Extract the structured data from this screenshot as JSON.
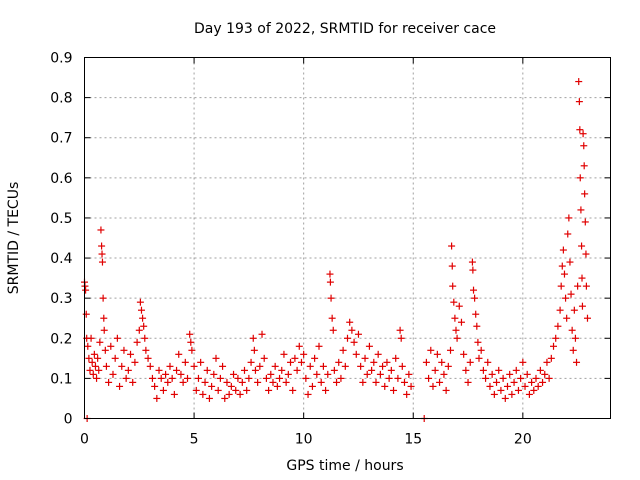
{
  "chart_data": {
    "type": "scatter",
    "title": "Day 193 of 2022, SRMTID for receiver cace",
    "xlabel": "GPS time / hours",
    "ylabel": "SRMTID / TECUs",
    "xlim": [
      0,
      24
    ],
    "ylim": [
      0,
      0.9
    ],
    "x_ticks": [
      0,
      5,
      10,
      15,
      20
    ],
    "x_tick_labels": [
      "0",
      "5",
      "10",
      "15",
      "20"
    ],
    "y_ticks": [
      0,
      0.1,
      0.2,
      0.3,
      0.4,
      0.5,
      0.6,
      0.7,
      0.8,
      0.9
    ],
    "y_tick_labels": [
      "0",
      "0.1",
      "0.2",
      "0.3",
      "0.4",
      "0.5",
      "0.6",
      "0.7",
      "0.8",
      "0.9"
    ],
    "grid": true,
    "marker": "+",
    "color": "#e00000",
    "series": [
      {
        "name": "SRMTID",
        "points": [
          [
            0.0,
            0.34
          ],
          [
            0.02,
            0.33
          ],
          [
            0.05,
            0.32
          ],
          [
            0.08,
            0.26
          ],
          [
            0.1,
            0.2
          ],
          [
            0.12,
            0.0
          ],
          [
            0.15,
            0.18
          ],
          [
            0.2,
            0.15
          ],
          [
            0.25,
            0.12
          ],
          [
            0.3,
            0.2
          ],
          [
            0.35,
            0.14
          ],
          [
            0.4,
            0.11
          ],
          [
            0.45,
            0.16
          ],
          [
            0.5,
            0.13
          ],
          [
            0.55,
            0.1
          ],
          [
            0.6,
            0.15
          ],
          [
            0.65,
            0.12
          ],
          [
            0.7,
            0.19
          ],
          [
            0.75,
            0.47
          ],
          [
            0.78,
            0.43
          ],
          [
            0.8,
            0.41
          ],
          [
            0.82,
            0.39
          ],
          [
            0.85,
            0.3
          ],
          [
            0.88,
            0.25
          ],
          [
            0.9,
            0.22
          ],
          [
            0.95,
            0.17
          ],
          [
            1.0,
            0.13
          ],
          [
            1.1,
            0.09
          ],
          [
            1.2,
            0.18
          ],
          [
            1.3,
            0.11
          ],
          [
            1.4,
            0.15
          ],
          [
            1.5,
            0.2
          ],
          [
            1.6,
            0.08
          ],
          [
            1.7,
            0.13
          ],
          [
            1.8,
            0.17
          ],
          [
            1.9,
            0.1
          ],
          [
            2.0,
            0.12
          ],
          [
            2.1,
            0.16
          ],
          [
            2.2,
            0.09
          ],
          [
            2.3,
            0.14
          ],
          [
            2.4,
            0.19
          ],
          [
            2.5,
            0.22
          ],
          [
            2.55,
            0.29
          ],
          [
            2.6,
            0.27
          ],
          [
            2.65,
            0.25
          ],
          [
            2.7,
            0.23
          ],
          [
            2.75,
            0.2
          ],
          [
            2.8,
            0.17
          ],
          [
            2.9,
            0.15
          ],
          [
            3.0,
            0.13
          ],
          [
            3.1,
            0.1
          ],
          [
            3.2,
            0.08
          ],
          [
            3.3,
            0.05
          ],
          [
            3.4,
            0.12
          ],
          [
            3.5,
            0.1
          ],
          [
            3.6,
            0.07
          ],
          [
            3.7,
            0.11
          ],
          [
            3.8,
            0.09
          ],
          [
            3.9,
            0.13
          ],
          [
            4.0,
            0.1
          ],
          [
            4.1,
            0.06
          ],
          [
            4.2,
            0.12
          ],
          [
            4.3,
            0.16
          ],
          [
            4.4,
            0.11
          ],
          [
            4.5,
            0.09
          ],
          [
            4.6,
            0.14
          ],
          [
            4.7,
            0.1
          ],
          [
            4.8,
            0.21
          ],
          [
            4.85,
            0.19
          ],
          [
            4.9,
            0.17
          ],
          [
            5.0,
            0.13
          ],
          [
            5.1,
            0.07
          ],
          [
            5.2,
            0.1
          ],
          [
            5.3,
            0.14
          ],
          [
            5.4,
            0.06
          ],
          [
            5.5,
            0.09
          ],
          [
            5.6,
            0.12
          ],
          [
            5.7,
            0.05
          ],
          [
            5.8,
            0.08
          ],
          [
            5.9,
            0.11
          ],
          [
            6.0,
            0.15
          ],
          [
            6.1,
            0.07
          ],
          [
            6.2,
            0.1
          ],
          [
            6.3,
            0.13
          ],
          [
            6.4,
            0.05
          ],
          [
            6.5,
            0.09
          ],
          [
            6.6,
            0.06
          ],
          [
            6.7,
            0.08
          ],
          [
            6.8,
            0.11
          ],
          [
            6.9,
            0.07
          ],
          [
            7.0,
            0.1
          ],
          [
            7.1,
            0.06
          ],
          [
            7.2,
            0.09
          ],
          [
            7.3,
            0.12
          ],
          [
            7.4,
            0.07
          ],
          [
            7.5,
            0.1
          ],
          [
            7.6,
            0.14
          ],
          [
            7.7,
            0.2
          ],
          [
            7.75,
            0.17
          ],
          [
            7.8,
            0.12
          ],
          [
            7.9,
            0.09
          ],
          [
            8.0,
            0.13
          ],
          [
            8.1,
            0.21
          ],
          [
            8.2,
            0.15
          ],
          [
            8.3,
            0.1
          ],
          [
            8.4,
            0.07
          ],
          [
            8.5,
            0.11
          ],
          [
            8.6,
            0.09
          ],
          [
            8.7,
            0.13
          ],
          [
            8.8,
            0.08
          ],
          [
            8.9,
            0.1
          ],
          [
            9.0,
            0.12
          ],
          [
            9.1,
            0.16
          ],
          [
            9.2,
            0.09
          ],
          [
            9.3,
            0.11
          ],
          [
            9.4,
            0.14
          ],
          [
            9.5,
            0.07
          ],
          [
            9.6,
            0.15
          ],
          [
            9.7,
            0.12
          ],
          [
            9.8,
            0.18
          ],
          [
            9.9,
            0.14
          ],
          [
            10.0,
            0.16
          ],
          [
            10.1,
            0.1
          ],
          [
            10.2,
            0.06
          ],
          [
            10.3,
            0.13
          ],
          [
            10.4,
            0.08
          ],
          [
            10.5,
            0.15
          ],
          [
            10.6,
            0.11
          ],
          [
            10.7,
            0.18
          ],
          [
            10.8,
            0.09
          ],
          [
            10.9,
            0.13
          ],
          [
            11.0,
            0.07
          ],
          [
            11.1,
            0.11
          ],
          [
            11.2,
            0.36
          ],
          [
            11.22,
            0.34
          ],
          [
            11.25,
            0.3
          ],
          [
            11.3,
            0.25
          ],
          [
            11.35,
            0.22
          ],
          [
            11.4,
            0.12
          ],
          [
            11.5,
            0.09
          ],
          [
            11.6,
            0.14
          ],
          [
            11.7,
            0.1
          ],
          [
            11.8,
            0.17
          ],
          [
            11.9,
            0.13
          ],
          [
            12.0,
            0.2
          ],
          [
            12.1,
            0.24
          ],
          [
            12.2,
            0.22
          ],
          [
            12.3,
            0.19
          ],
          [
            12.4,
            0.16
          ],
          [
            12.5,
            0.21
          ],
          [
            12.6,
            0.13
          ],
          [
            12.7,
            0.09
          ],
          [
            12.8,
            0.15
          ],
          [
            12.9,
            0.11
          ],
          [
            13.0,
            0.18
          ],
          [
            13.1,
            0.12
          ],
          [
            13.2,
            0.14
          ],
          [
            13.3,
            0.09
          ],
          [
            13.4,
            0.16
          ],
          [
            13.5,
            0.11
          ],
          [
            13.6,
            0.13
          ],
          [
            13.7,
            0.08
          ],
          [
            13.8,
            0.14
          ],
          [
            13.9,
            0.1
          ],
          [
            14.0,
            0.12
          ],
          [
            14.1,
            0.07
          ],
          [
            14.2,
            0.15
          ],
          [
            14.3,
            0.1
          ],
          [
            14.4,
            0.22
          ],
          [
            14.45,
            0.2
          ],
          [
            14.5,
            0.13
          ],
          [
            14.6,
            0.09
          ],
          [
            14.7,
            0.06
          ],
          [
            14.8,
            0.11
          ],
          [
            14.9,
            0.08
          ],
          [
            15.5,
            0.0
          ],
          [
            15.6,
            0.14
          ],
          [
            15.7,
            0.1
          ],
          [
            15.8,
            0.17
          ],
          [
            15.9,
            0.08
          ],
          [
            16.0,
            0.12
          ],
          [
            16.1,
            0.16
          ],
          [
            16.2,
            0.09
          ],
          [
            16.3,
            0.14
          ],
          [
            16.4,
            0.11
          ],
          [
            16.5,
            0.07
          ],
          [
            16.6,
            0.13
          ],
          [
            16.7,
            0.17
          ],
          [
            16.75,
            0.43
          ],
          [
            16.78,
            0.38
          ],
          [
            16.8,
            0.33
          ],
          [
            16.85,
            0.29
          ],
          [
            16.9,
            0.25
          ],
          [
            16.95,
            0.22
          ],
          [
            17.0,
            0.2
          ],
          [
            17.1,
            0.28
          ],
          [
            17.2,
            0.24
          ],
          [
            17.3,
            0.16
          ],
          [
            17.4,
            0.12
          ],
          [
            17.5,
            0.09
          ],
          [
            17.6,
            0.14
          ],
          [
            17.7,
            0.39
          ],
          [
            17.72,
            0.37
          ],
          [
            17.75,
            0.32
          ],
          [
            17.8,
            0.3
          ],
          [
            17.85,
            0.26
          ],
          [
            17.9,
            0.23
          ],
          [
            17.95,
            0.19
          ],
          [
            18.0,
            0.15
          ],
          [
            18.1,
            0.17
          ],
          [
            18.2,
            0.12
          ],
          [
            18.3,
            0.1
          ],
          [
            18.4,
            0.14
          ],
          [
            18.5,
            0.08
          ],
          [
            18.6,
            0.11
          ],
          [
            18.7,
            0.06
          ],
          [
            18.8,
            0.09
          ],
          [
            18.9,
            0.12
          ],
          [
            19.0,
            0.07
          ],
          [
            19.1,
            0.1
          ],
          [
            19.2,
            0.05
          ],
          [
            19.3,
            0.08
          ],
          [
            19.4,
            0.11
          ],
          [
            19.5,
            0.06
          ],
          [
            19.6,
            0.09
          ],
          [
            19.7,
            0.12
          ],
          [
            19.8,
            0.07
          ],
          [
            19.9,
            0.1
          ],
          [
            20.0,
            0.14
          ],
          [
            20.1,
            0.08
          ],
          [
            20.2,
            0.11
          ],
          [
            20.3,
            0.06
          ],
          [
            20.4,
            0.09
          ],
          [
            20.5,
            0.07
          ],
          [
            20.6,
            0.1
          ],
          [
            20.7,
            0.08
          ],
          [
            20.8,
            0.12
          ],
          [
            20.9,
            0.09
          ],
          [
            21.0,
            0.11
          ],
          [
            21.1,
            0.14
          ],
          [
            21.2,
            0.1
          ],
          [
            21.3,
            0.15
          ],
          [
            21.4,
            0.18
          ],
          [
            21.5,
            0.2
          ],
          [
            21.6,
            0.23
          ],
          [
            21.7,
            0.27
          ],
          [
            21.75,
            0.33
          ],
          [
            21.8,
            0.38
          ],
          [
            21.85,
            0.42
          ],
          [
            21.9,
            0.36
          ],
          [
            21.95,
            0.3
          ],
          [
            22.0,
            0.25
          ],
          [
            22.05,
            0.46
          ],
          [
            22.1,
            0.5
          ],
          [
            22.15,
            0.39
          ],
          [
            22.2,
            0.31
          ],
          [
            22.25,
            0.22
          ],
          [
            22.3,
            0.17
          ],
          [
            22.35,
            0.27
          ],
          [
            22.4,
            0.2
          ],
          [
            22.45,
            0.14
          ],
          [
            22.5,
            0.33
          ],
          [
            22.55,
            0.84
          ],
          [
            22.58,
            0.79
          ],
          [
            22.6,
            0.72
          ],
          [
            22.62,
            0.6
          ],
          [
            22.65,
            0.52
          ],
          [
            22.68,
            0.43
          ],
          [
            22.7,
            0.35
          ],
          [
            22.72,
            0.28
          ],
          [
            22.75,
            0.71
          ],
          [
            22.78,
            0.68
          ],
          [
            22.8,
            0.63
          ],
          [
            22.82,
            0.56
          ],
          [
            22.85,
            0.49
          ],
          [
            22.88,
            0.41
          ],
          [
            22.9,
            0.33
          ],
          [
            22.95,
            0.25
          ]
        ]
      }
    ]
  }
}
